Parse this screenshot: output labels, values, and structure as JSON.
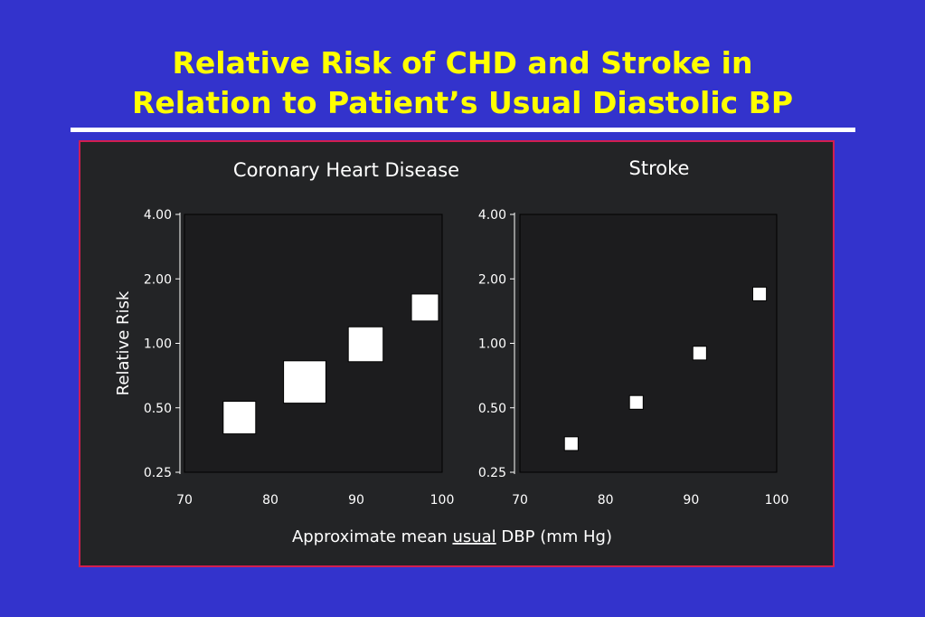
{
  "slide": {
    "title_line1": "Relative Risk of CHD and Stroke in",
    "title_line2": "Relation to Patient’s Usual Diastolic BP"
  },
  "colors": {
    "background": "#3333cc",
    "title": "#ffff00",
    "frame_border": "#d21e50",
    "figure_background": "#232426",
    "marker": "#ffffff"
  },
  "chart_data": [
    {
      "type": "scatter",
      "title": "Coronary Heart Disease",
      "ylabel": "Relative Risk",
      "y_scale": "log",
      "xlim": [
        70,
        100
      ],
      "ylim": [
        0.25,
        4.0
      ],
      "x_ticks": [
        "70",
        "80",
        "90",
        "100"
      ],
      "y_ticks": [
        "4.00",
        "2.00",
        "1.00",
        "0.50",
        "0.25"
      ],
      "marker_shape": "square",
      "points": [
        {
          "x": 76.4,
          "y": 0.45,
          "weight": 1.0
        },
        {
          "x": 84.0,
          "y": 0.66,
          "weight": 1.3
        },
        {
          "x": 91.1,
          "y": 0.99,
          "weight": 1.07
        },
        {
          "x": 98.0,
          "y": 1.47,
          "weight": 0.83
        }
      ]
    },
    {
      "type": "scatter",
      "title": "Stroke",
      "y_scale": "log",
      "xlim": [
        70,
        100
      ],
      "ylim": [
        0.25,
        4.0
      ],
      "x_ticks": [
        "70",
        "80",
        "90",
        "100"
      ],
      "y_ticks": [
        "4.00",
        "2.00",
        "1.00",
        "0.50",
        "0.25"
      ],
      "marker_shape": "square",
      "points": [
        {
          "x": 76.0,
          "y": 0.34,
          "weight": 0.42
        },
        {
          "x": 83.6,
          "y": 0.53,
          "weight": 0.42
        },
        {
          "x": 91.0,
          "y": 0.9,
          "weight": 0.42
        },
        {
          "x": 98.0,
          "y": 1.7,
          "weight": 0.42
        }
      ]
    }
  ],
  "shared_xlabel": {
    "prefix": "Approximate mean ",
    "underlined": "usual",
    "suffix": " DBP (mm Hg)"
  }
}
